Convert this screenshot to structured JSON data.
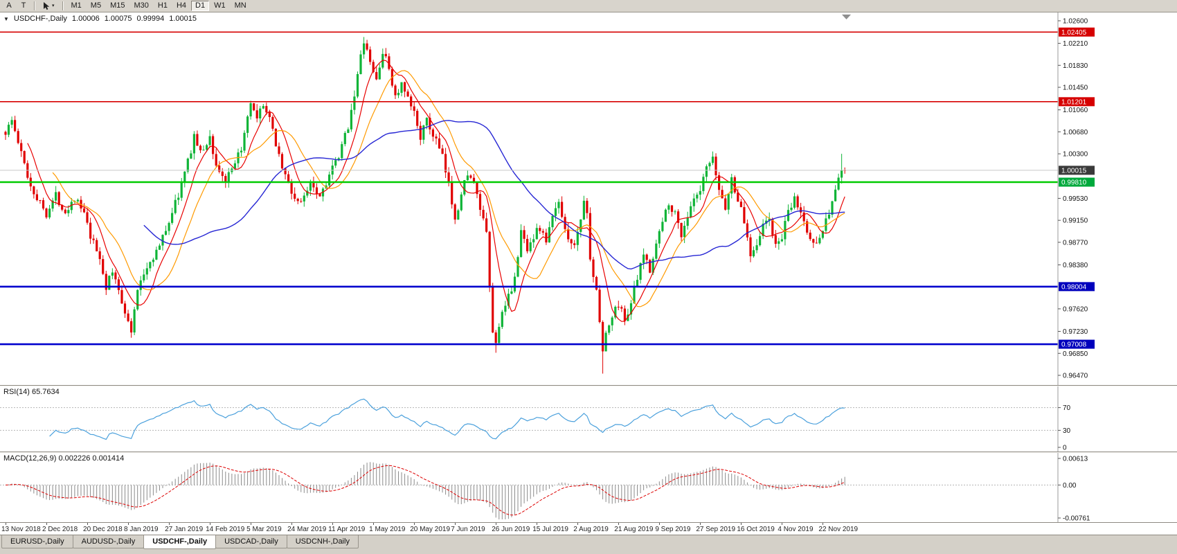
{
  "colors": {
    "bull": "#0fb437",
    "bear": "#e00000"
  },
  "toolbar": {
    "buttons_left": [
      "A",
      "T"
    ],
    "cursor_tool": "cursor-pointer-tool",
    "timeframes": [
      "M1",
      "M5",
      "M15",
      "M30",
      "H1",
      "H4",
      "D1",
      "W1",
      "MN"
    ],
    "active_timeframe": "D1"
  },
  "main_chart": {
    "type": "candlestick",
    "symbol_label": "USDCHF-,Daily",
    "ohlc": {
      "open": "1.00006",
      "high": "1.00075",
      "low": "0.99994",
      "close": "1.00015"
    },
    "current_price": 1.00015,
    "candle_count": 268,
    "noise_seed": 1337,
    "y_axis": {
      "max": 1.026,
      "min": 0.9647,
      "ticks": [
        "1.02600",
        "1.02210",
        "1.01830",
        "1.01450",
        "1.01060",
        "1.00680",
        "1.00300",
        "0.99530",
        "0.99150",
        "0.98770",
        "0.98380",
        "0.97620",
        "0.97230",
        "0.96850",
        "0.96470"
      ]
    },
    "levels": [
      {
        "value": 1.02405,
        "label": "1.02405",
        "line_color": "#d60000",
        "line_width": 1.6,
        "badge_color": "#d60000"
      },
      {
        "value": 1.01201,
        "label": "1.01201",
        "line_color": "#d60000",
        "line_width": 1.6,
        "badge_color": "#d60000"
      },
      {
        "value": 1.00015,
        "label": "1.00015",
        "line_color": "#c8c8c8",
        "line_width": 1,
        "badge_color": "#3a3a3a"
      },
      {
        "value": 0.9981,
        "label": "0.99810",
        "line_color": "#00ca00",
        "line_width": 2.6,
        "badge_color": "#00a93c"
      },
      {
        "value": 0.98004,
        "label": "0.98004",
        "line_color": "#0000cd",
        "line_width": 2.6,
        "badge_color": "#0000bd"
      },
      {
        "value": 0.97008,
        "label": "0.97008",
        "line_color": "#0000cd",
        "line_width": 2.6,
        "badge_color": "#0000bd"
      }
    ],
    "moving_averages": [
      {
        "period": 8,
        "color": "#e80000",
        "width": 1.2
      },
      {
        "period": 16,
        "color": "#ff9a00",
        "width": 1.2
      },
      {
        "period": 45,
        "color": "#2626d4",
        "width": 1.4
      }
    ],
    "price_path": [
      [
        0,
        1.0068
      ],
      [
        2,
        1.0088
      ],
      [
        5,
        1.003
      ],
      [
        8,
        0.9975
      ],
      [
        11,
        0.9945
      ],
      [
        13,
        0.9928
      ],
      [
        16,
        0.9958
      ],
      [
        19,
        0.993
      ],
      [
        22,
        0.9955
      ],
      [
        25,
        0.9925
      ],
      [
        27,
        0.9885
      ],
      [
        30,
        0.985
      ],
      [
        32,
        0.98
      ],
      [
        34,
        0.9825
      ],
      [
        36,
        0.9795
      ],
      [
        38,
        0.976
      ],
      [
        40,
        0.9718
      ],
      [
        41,
        0.9765
      ],
      [
        43,
        0.9812
      ],
      [
        46,
        0.9845
      ],
      [
        49,
        0.987
      ],
      [
        52,
        0.9915
      ],
      [
        55,
        0.996
      ],
      [
        58,
        1.0015
      ],
      [
        60,
        1.0062
      ],
      [
        62,
        1.003
      ],
      [
        65,
        1.0058
      ],
      [
        67,
        1.001
      ],
      [
        70,
        0.9982
      ],
      [
        73,
        1.0008
      ],
      [
        76,
        1.006
      ],
      [
        78,
        1.0115
      ],
      [
        80,
        1.0085
      ],
      [
        82,
        1.0118
      ],
      [
        85,
        1.007
      ],
      [
        88,
        1.0008
      ],
      [
        91,
        0.9962
      ],
      [
        94,
        0.9942
      ],
      [
        97,
        0.9985
      ],
      [
        100,
        0.9958
      ],
      [
        103,
        0.9995
      ],
      [
        106,
        1.0022
      ],
      [
        109,
        1.008
      ],
      [
        111,
        1.0135
      ],
      [
        113,
        1.0195
      ],
      [
        114,
        1.0226
      ],
      [
        116,
        1.0185
      ],
      [
        118,
        1.0158
      ],
      [
        120,
        1.0205
      ],
      [
        122,
        1.0178
      ],
      [
        124,
        1.0128
      ],
      [
        126,
        1.0148
      ],
      [
        128,
        1.0122
      ],
      [
        130,
        1.01
      ],
      [
        132,
        1.0062
      ],
      [
        134,
        1.0085
      ],
      [
        137,
        1.0052
      ],
      [
        139,
        1.0022
      ],
      [
        141,
        0.9975
      ],
      [
        143,
        0.9922
      ],
      [
        145,
        0.9958
      ],
      [
        147,
        1.0
      ],
      [
        149,
        0.9975
      ],
      [
        151,
        0.9935
      ],
      [
        153,
        0.9888
      ],
      [
        154,
        0.98
      ],
      [
        155,
        0.9722
      ],
      [
        156,
        0.97
      ],
      [
        157,
        0.9738
      ],
      [
        159,
        0.9762
      ],
      [
        161,
        0.9798
      ],
      [
        163,
        0.985
      ],
      [
        164,
        0.9895
      ],
      [
        166,
        0.9868
      ],
      [
        168,
        0.9888
      ],
      [
        170,
        0.9902
      ],
      [
        172,
        0.9878
      ],
      [
        174,
        0.992
      ],
      [
        176,
        0.9948
      ],
      [
        178,
        0.9905
      ],
      [
        180,
        0.987
      ],
      [
        182,
        0.9888
      ],
      [
        184,
        0.9952
      ],
      [
        185,
        0.992
      ],
      [
        186,
        0.9855
      ],
      [
        188,
        0.9788
      ],
      [
        189,
        0.974
      ],
      [
        190,
        0.9692
      ],
      [
        191,
        0.9718
      ],
      [
        193,
        0.9748
      ],
      [
        195,
        0.9772
      ],
      [
        197,
        0.9742
      ],
      [
        199,
        0.9775
      ],
      [
        201,
        0.9812
      ],
      [
        203,
        0.9855
      ],
      [
        205,
        0.9832
      ],
      [
        207,
        0.9875
      ],
      [
        209,
        0.9912
      ],
      [
        211,
        0.9948
      ],
      [
        213,
        0.9925
      ],
      [
        215,
        0.9892
      ],
      [
        217,
        0.9922
      ],
      [
        219,
        0.9948
      ],
      [
        221,
        0.9962
      ],
      [
        223,
        1.0005
      ],
      [
        225,
        1.0018
      ],
      [
        227,
        0.9968
      ],
      [
        229,
        0.9938
      ],
      [
        231,
        0.9985
      ],
      [
        233,
        0.9952
      ],
      [
        235,
        0.9912
      ],
      [
        237,
        0.9858
      ],
      [
        239,
        0.9878
      ],
      [
        241,
        0.9905
      ],
      [
        243,
        0.9918
      ],
      [
        245,
        0.9868
      ],
      [
        247,
        0.9888
      ],
      [
        249,
        0.9925
      ],
      [
        251,
        0.9952
      ],
      [
        253,
        0.9928
      ],
      [
        255,
        0.9895
      ],
      [
        257,
        0.9872
      ],
      [
        259,
        0.9892
      ],
      [
        261,
        0.9912
      ],
      [
        263,
        0.9948
      ],
      [
        265,
        0.9988
      ],
      [
        267,
        1.0002
      ]
    ],
    "spike_highs": [
      [
        114,
        1.0232
      ],
      [
        120,
        1.0212
      ],
      [
        266,
        1.003
      ]
    ],
    "spike_lows": [
      [
        40,
        0.9712
      ],
      [
        156,
        0.9686
      ],
      [
        190,
        0.965
      ]
    ]
  },
  "rsi_panel": {
    "label": "RSI(14) 65.7634",
    "period": 14,
    "color": "#4aa0dc",
    "levels": [
      70,
      30
    ],
    "axis_labels": [
      "70",
      "30",
      "0"
    ]
  },
  "macd_panel": {
    "label": "MACD(12,26,9) 0.002226 0.001414",
    "fast": 12,
    "slow": 26,
    "signal": 9,
    "histogram_color": "#8a8a8a",
    "signal_color": "#dd0000",
    "range_max": 0.00613,
    "range_min": -0.00761,
    "axis_labels": [
      "0.00613",
      "0.00",
      "-0.00761"
    ]
  },
  "x_axis": {
    "candles_per_label": 13,
    "labels": [
      "13 Nov 2018",
      "2 Dec 2018",
      "20 Dec 2018",
      "8 Jan 2019",
      "27 Jan 2019",
      "14 Feb 2019",
      "5 Mar 2019",
      "24 Mar 2019",
      "11 Apr 2019",
      "1 May 2019",
      "20 May 2019",
      "7 Jun 2019",
      "26 Jun 2019",
      "15 Jul 2019",
      "2 Aug 2019",
      "21 Aug 2019",
      "9 Sep 2019",
      "27 Sep 2019",
      "16 Oct 2019",
      "4 Nov 2019",
      "22 Nov 2019"
    ]
  },
  "tabs": {
    "active_index": 2,
    "items": [
      "EURUSD-,Daily",
      "AUDUSD-,Daily",
      "USDCHF-,Daily",
      "USDCAD-,Daily",
      "USDCNH-,Daily"
    ]
  }
}
